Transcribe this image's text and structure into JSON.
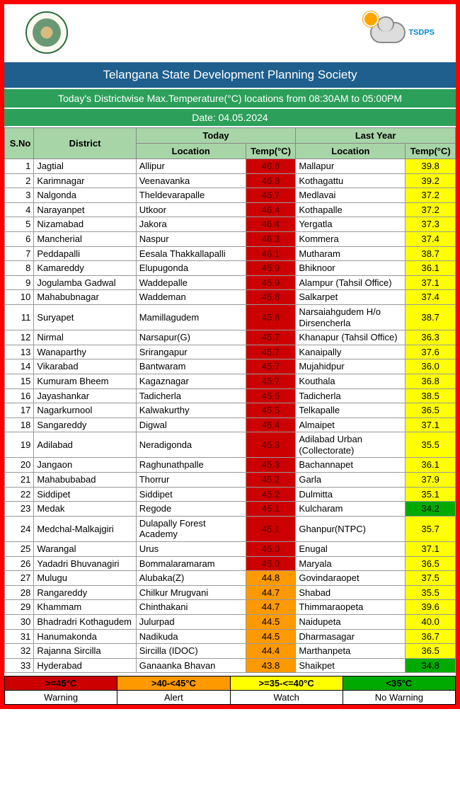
{
  "logos": {
    "tsdps": "TSDPS"
  },
  "title": "Telangana State Development Planning Society",
  "subtitle": "Today's Districtwise Max.Temperature(°C) locations from 08:30AM to 05:00PM",
  "date": "Date: 04.05.2024",
  "headers": {
    "sno": "S.No",
    "district": "District",
    "today": "Today",
    "lastyear": "Last Year",
    "location": "Location",
    "temp": "Temp(°C)"
  },
  "colors": {
    "red": "#cc0000",
    "orange": "#ff9900",
    "yellow": "#ffff00",
    "green": "#00aa00"
  },
  "rows": [
    {
      "n": "1",
      "d": "Jagtial",
      "tl": "Allipur",
      "tt": "46.8",
      "tc": "red",
      "ll": "Mallapur",
      "lt": "39.8",
      "lc": "yellow"
    },
    {
      "n": "2",
      "d": "Karimnagar",
      "tl": "Veenavanka",
      "tt": "46.8",
      "tc": "red",
      "ll": "Kothagattu",
      "lt": "39.2",
      "lc": "yellow"
    },
    {
      "n": "3",
      "d": "Nalgonda",
      "tl": "Theldevarapalle",
      "tt": "46.7",
      "tc": "red",
      "ll": "Medlavai",
      "lt": "37.2",
      "lc": "yellow"
    },
    {
      "n": "4",
      "d": "Narayanpet",
      "tl": "Utkoor",
      "tt": "46.4",
      "tc": "red",
      "ll": "Kothapalle",
      "lt": "37.2",
      "lc": "yellow"
    },
    {
      "n": "5",
      "d": "Nizamabad",
      "tl": "Jakora",
      "tt": "46.4",
      "tc": "red",
      "ll": "Yergatla",
      "lt": "37.3",
      "lc": "yellow"
    },
    {
      "n": "6",
      "d": "Mancherial",
      "tl": "Naspur",
      "tt": "46.3",
      "tc": "red",
      "ll": "Kommera",
      "lt": "37.4",
      "lc": "yellow"
    },
    {
      "n": "7",
      "d": "Peddapalli",
      "tl": "Eesala Thakkallapalli",
      "tt": "46.1",
      "tc": "red",
      "ll": "Mutharam",
      "lt": "38.7",
      "lc": "yellow"
    },
    {
      "n": "8",
      "d": "Kamareddy",
      "tl": "Elupugonda",
      "tt": "45.9",
      "tc": "red",
      "ll": "Bhiknoor",
      "lt": "36.1",
      "lc": "yellow"
    },
    {
      "n": "9",
      "d": "Jogulamba Gadwal",
      "tl": "Waddepalle",
      "tt": "45.9",
      "tc": "red",
      "ll": "Alampur (Tahsil Office)",
      "lt": "37.1",
      "lc": "yellow"
    },
    {
      "n": "10",
      "d": "Mahabubnagar",
      "tl": "Waddeman",
      "tt": "45.8",
      "tc": "red",
      "ll": "Salkarpet",
      "lt": "37.4",
      "lc": "yellow"
    },
    {
      "n": "11",
      "d": "Suryapet",
      "tl": "Mamillagudem",
      "tt": "45.8",
      "tc": "red",
      "ll": "Narsaiahgudem H/o Dirsencherla",
      "lt": "38.7",
      "lc": "yellow"
    },
    {
      "n": "12",
      "d": "Nirmal",
      "tl": "Narsapur(G)",
      "tt": "45.7",
      "tc": "red",
      "ll": "Khanapur (Tahsil Office)",
      "lt": "36.3",
      "lc": "yellow"
    },
    {
      "n": "13",
      "d": "Wanaparthy",
      "tl": "Srirangapur",
      "tt": "45.7",
      "tc": "red",
      "ll": "Kanaipally",
      "lt": "37.6",
      "lc": "yellow"
    },
    {
      "n": "14",
      "d": "Vikarabad",
      "tl": "Bantwaram",
      "tt": "45.7",
      "tc": "red",
      "ll": "Mujahidpur",
      "lt": "36.0",
      "lc": "yellow"
    },
    {
      "n": "15",
      "d": "Kumuram Bheem",
      "tl": "Kagaznagar",
      "tt": "45.7",
      "tc": "red",
      "ll": "Kouthala",
      "lt": "36.8",
      "lc": "yellow"
    },
    {
      "n": "16",
      "d": "Jayashankar",
      "tl": "Tadicherla",
      "tt": "45.5",
      "tc": "red",
      "ll": "Tadicherla",
      "lt": "38.5",
      "lc": "yellow"
    },
    {
      "n": "17",
      "d": "Nagarkurnool",
      "tl": "Kalwakurthy",
      "tt": "45.5",
      "tc": "red",
      "ll": "Telkapalle",
      "lt": "36.5",
      "lc": "yellow"
    },
    {
      "n": "18",
      "d": "Sangareddy",
      "tl": "Digwal",
      "tt": "45.4",
      "tc": "red",
      "ll": "Almaipet",
      "lt": "37.1",
      "lc": "yellow"
    },
    {
      "n": "19",
      "d": "Adilabad",
      "tl": "Neradigonda",
      "tt": "45.3",
      "tc": "red",
      "ll": "Adilabad Urban (Collectorate)",
      "lt": "35.5",
      "lc": "yellow"
    },
    {
      "n": "20",
      "d": "Jangaon",
      "tl": "Raghunathpalle",
      "tt": "45.3",
      "tc": "red",
      "ll": "Bachannapet",
      "lt": "36.1",
      "lc": "yellow"
    },
    {
      "n": "21",
      "d": "Mahabubabad",
      "tl": "Thorrur",
      "tt": "45.2",
      "tc": "red",
      "ll": "Garla",
      "lt": "37.9",
      "lc": "yellow"
    },
    {
      "n": "22",
      "d": "Siddipet",
      "tl": "Siddipet",
      "tt": "45.2",
      "tc": "red",
      "ll": "Dulmitta",
      "lt": "35.1",
      "lc": "yellow"
    },
    {
      "n": "23",
      "d": "Medak",
      "tl": "Regode",
      "tt": "45.1",
      "tc": "red",
      "ll": "Kulcharam",
      "lt": "34.2",
      "lc": "green"
    },
    {
      "n": "24",
      "d": "Medchal-Malkajgiri",
      "tl": "Dulapally Forest Academy",
      "tt": "45.1",
      "tc": "red",
      "ll": "Ghanpur(NTPC)",
      "lt": "35.7",
      "lc": "yellow"
    },
    {
      "n": "25",
      "d": "Warangal",
      "tl": "Urus",
      "tt": "45.0",
      "tc": "red",
      "ll": "Enugal",
      "lt": "37.1",
      "lc": "yellow"
    },
    {
      "n": "26",
      "d": "Yadadri Bhuvanagiri",
      "tl": "Bommalaramaram",
      "tt": "45.0",
      "tc": "red",
      "ll": "Maryala",
      "lt": "36.5",
      "lc": "yellow"
    },
    {
      "n": "27",
      "d": "Mulugu",
      "tl": "Alubaka(Z)",
      "tt": "44.8",
      "tc": "orange",
      "ll": "Govindaraopet",
      "lt": "37.5",
      "lc": "yellow"
    },
    {
      "n": "28",
      "d": "Rangareddy",
      "tl": "Chilkur Mrugvani",
      "tt": "44.7",
      "tc": "orange",
      "ll": "Shabad",
      "lt": "35.5",
      "lc": "yellow"
    },
    {
      "n": "29",
      "d": "Khammam",
      "tl": "Chinthakani",
      "tt": "44.7",
      "tc": "orange",
      "ll": "Thimmaraopeta",
      "lt": "39.6",
      "lc": "yellow"
    },
    {
      "n": "30",
      "d": "Bhadradri Kothagudem",
      "tl": "Julurpad",
      "tt": "44.5",
      "tc": "orange",
      "ll": "Naidupeta",
      "lt": "40.0",
      "lc": "yellow"
    },
    {
      "n": "31",
      "d": "Hanumakonda",
      "tl": "Nadikuda",
      "tt": "44.5",
      "tc": "orange",
      "ll": "Dharmasagar",
      "lt": "36.7",
      "lc": "yellow"
    },
    {
      "n": "32",
      "d": "Rajanna Sircilla",
      "tl": "Sircilla (IDOC)",
      "tt": "44.4",
      "tc": "orange",
      "ll": "Marthanpeta",
      "lt": "36.5",
      "lc": "yellow"
    },
    {
      "n": "33",
      "d": "Hyderabad",
      "tl": "Ganaanka Bhavan",
      "tt": "43.8",
      "tc": "orange",
      "ll": "Shaikpet",
      "lt": "34.8",
      "lc": "green"
    }
  ],
  "legend": [
    {
      "range": ">=45°C",
      "label": "Warning",
      "color": "red"
    },
    {
      "range": ">40-<45°C",
      "label": "Alert",
      "color": "orange"
    },
    {
      "range": ">=35-<=40°C",
      "label": "Watch",
      "color": "yellow"
    },
    {
      "range": "<35°C",
      "label": "No Warning",
      "color": "green"
    }
  ]
}
